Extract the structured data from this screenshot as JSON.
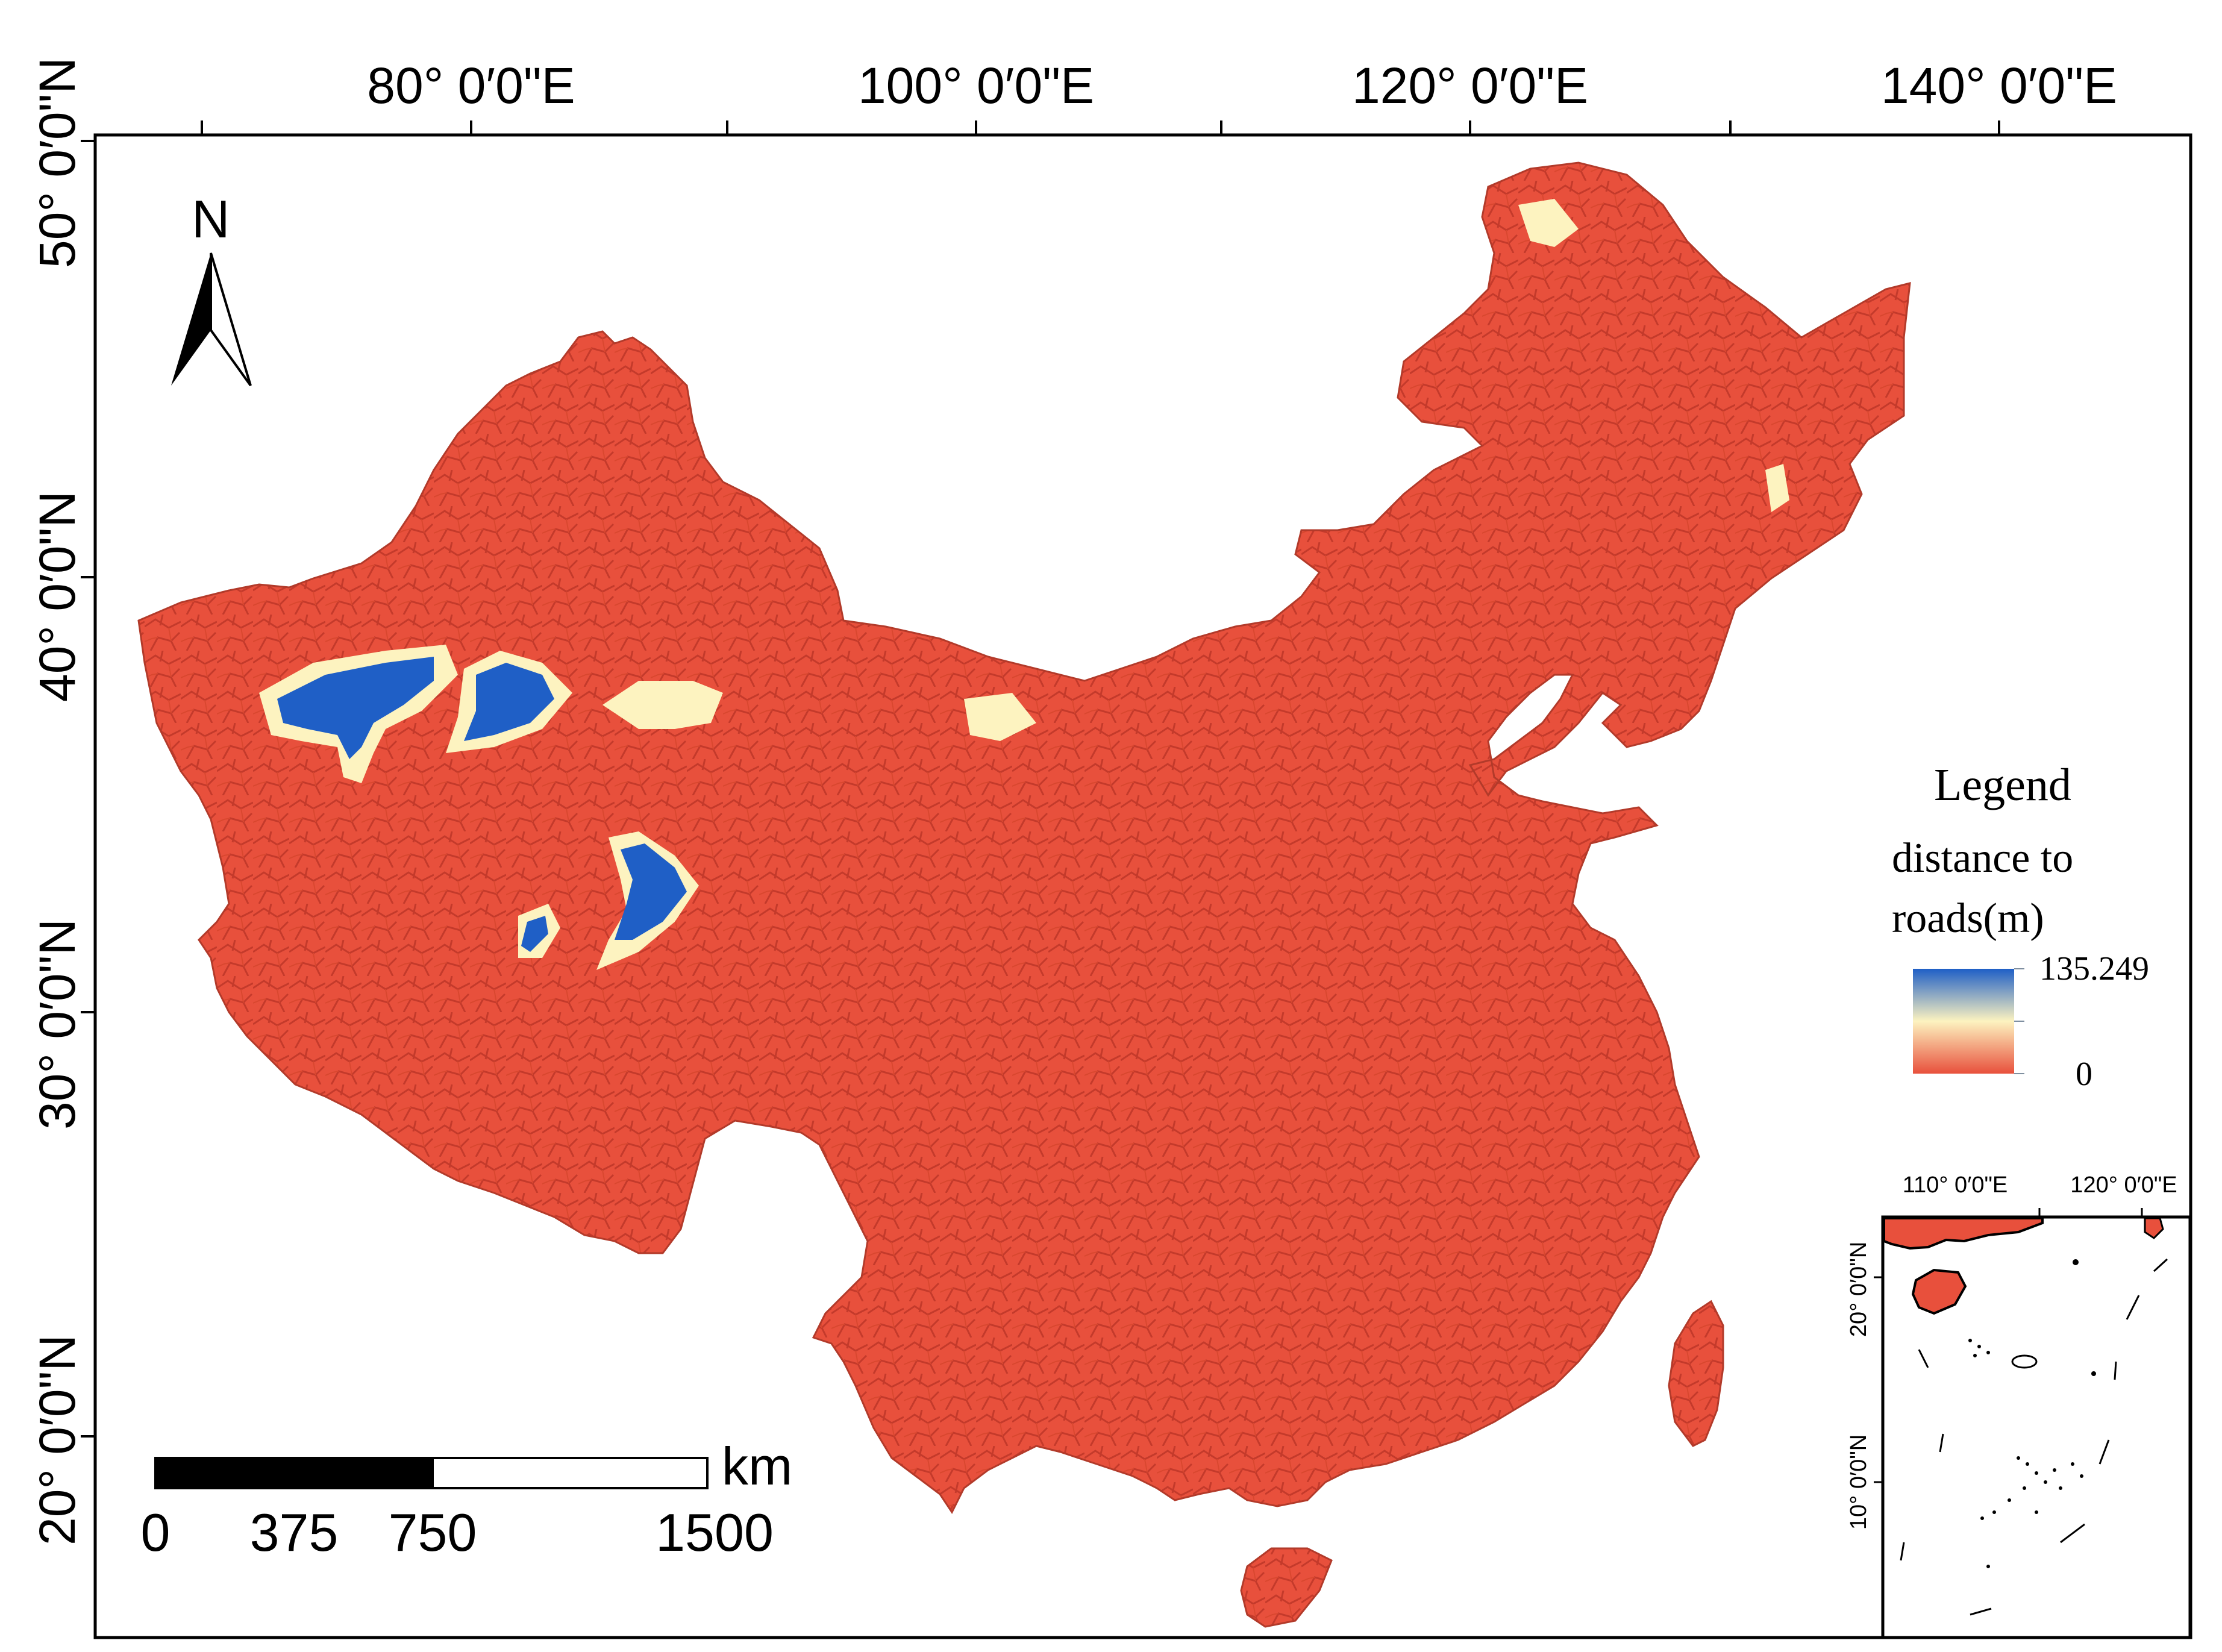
{
  "map": {
    "top_labels": [
      "80° 0′0\"E",
      "100° 0′0\"E",
      "120° 0′0\"E",
      "140° 0′0\"E"
    ],
    "left_labels": [
      "50° 0′0\"N",
      "40° 0′0\"N",
      "30° 0′0\"N",
      "20° 0′0\"N"
    ]
  },
  "north_arrow": {
    "letter": "N"
  },
  "legend": {
    "title": "Legend",
    "subtitle_line1": "distance to",
    "subtitle_line2": "roads(m)",
    "max_label": "135.249",
    "min_label": "0",
    "colors": {
      "high": "#1f5fc6",
      "mid": "#fdf3c0",
      "low": "#e8503c"
    }
  },
  "scale_bar": {
    "unit": "km",
    "ticks": [
      "0",
      "375",
      "750",
      "1500"
    ]
  },
  "inset": {
    "top_labels": [
      "110° 0′0\"E",
      "120° 0′0\"E"
    ],
    "left_labels": [
      "20° 0′0\"N",
      "10° 0′0\"N"
    ]
  },
  "colors": {
    "land": "#e8503c",
    "road_line": "#c43a2b",
    "frame": "#000000"
  }
}
